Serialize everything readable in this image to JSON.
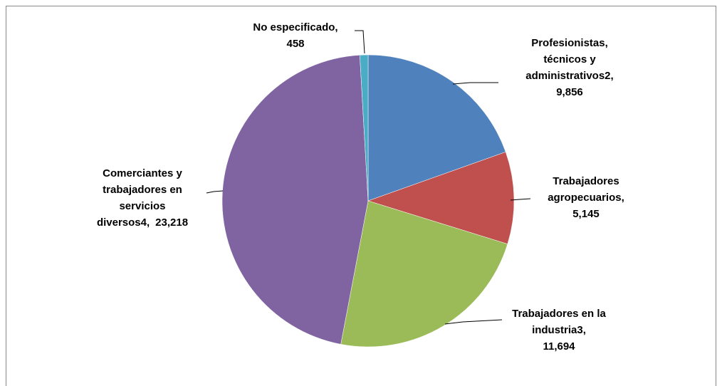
{
  "chart_data": {
    "type": "pie",
    "categories": [
      "Profesionistas, técnicos y administrativos2,",
      "Trabajadores agropecuarios,",
      "Trabajadores en la industria3,",
      "Comerciantes y trabajadores en servicios diversos4,",
      "No especificado,"
    ],
    "values": [
      9856,
      5145,
      11694,
      23218,
      458
    ],
    "value_labels": [
      "9,856",
      "5,145",
      "11,694",
      "23,218",
      "458"
    ],
    "colors": [
      "#4f81bd",
      "#c0504d",
      "#9bbb59",
      "#8064a2",
      "#4bacc6"
    ]
  }
}
